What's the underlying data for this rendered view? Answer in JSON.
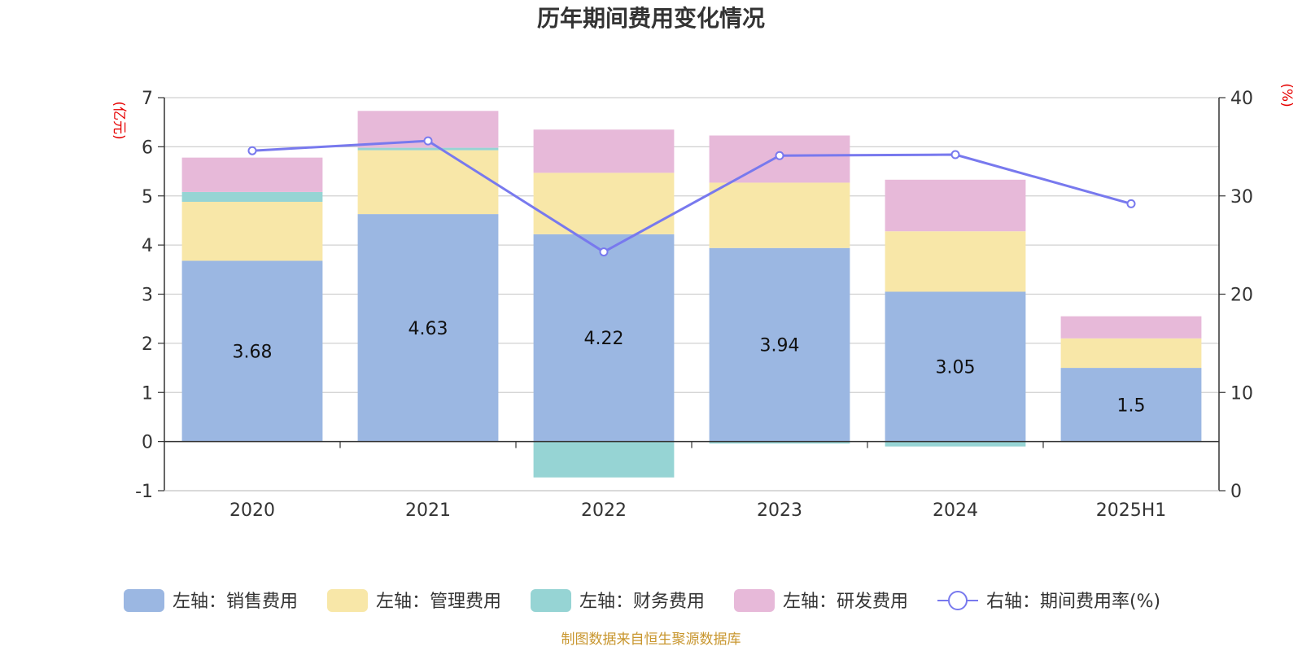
{
  "chart_data": {
    "type": "bar",
    "stacked": true,
    "title": "历年期间费用变化情况",
    "left_axis_unit": "(亿元)",
    "right_axis_unit": "(%)",
    "categories": [
      "2020",
      "2021",
      "2022",
      "2023",
      "2024",
      "2025H1"
    ],
    "left_ylim": [
      -1,
      7
    ],
    "left_ticks": [
      -1,
      0,
      1,
      2,
      3,
      4,
      5,
      6,
      7
    ],
    "right_ylim": [
      0,
      40
    ],
    "right_ticks": [
      0,
      10,
      20,
      30,
      40
    ],
    "grid": true,
    "legend_position": "bottom",
    "series": [
      {
        "name": "左轴：销售费用",
        "axis": "left",
        "color": "#9bb7e2",
        "values": [
          3.68,
          4.63,
          4.22,
          3.94,
          3.05,
          1.5
        ],
        "show_labels": true
      },
      {
        "name": "左轴：管理费用",
        "axis": "left",
        "color": "#f8e7a8",
        "values": [
          1.2,
          1.3,
          1.25,
          1.33,
          1.23,
          0.6
        ],
        "show_labels": false
      },
      {
        "name": "左轴：财务费用",
        "axis": "left",
        "color": "#96d4d4",
        "values": [
          0.2,
          0.05,
          -0.73,
          -0.04,
          -0.1,
          -0.01
        ],
        "show_labels": false
      },
      {
        "name": "左轴：研发费用",
        "axis": "left",
        "color": "#e7b9d9",
        "values": [
          0.7,
          0.75,
          0.88,
          0.96,
          1.05,
          0.45
        ],
        "show_labels": false
      }
    ],
    "line_series": {
      "name": "右轴：期间费用率(%)",
      "axis": "right",
      "color": "#7879ee",
      "values": [
        34.6,
        35.6,
        24.3,
        34.1,
        34.2,
        29.2
      ]
    }
  },
  "source": "制图数据来自恒生聚源数据库"
}
